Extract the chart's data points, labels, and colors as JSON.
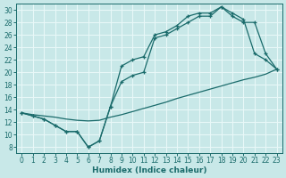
{
  "xlabel": "Humidex (Indice chaleur)",
  "bg_color": "#c8e8e8",
  "grid_color": "#e8f8f8",
  "line_color": "#1a6b6b",
  "xlim": [
    -0.5,
    23.5
  ],
  "ylim": [
    7,
    31
  ],
  "yticks": [
    8,
    10,
    12,
    14,
    16,
    18,
    20,
    22,
    24,
    26,
    28,
    30
  ],
  "xticks": [
    0,
    1,
    2,
    3,
    4,
    5,
    6,
    7,
    8,
    9,
    10,
    11,
    12,
    13,
    14,
    15,
    16,
    17,
    18,
    19,
    20,
    21,
    22,
    23
  ],
  "line_upper_x": [
    0,
    1,
    2,
    3,
    4,
    5,
    6,
    7,
    8,
    9,
    10,
    11,
    12,
    13,
    14,
    15,
    16,
    17,
    18,
    19,
    20,
    21,
    22,
    23
  ],
  "line_upper_y": [
    13.5,
    13.0,
    12.5,
    11.5,
    10.5,
    10.5,
    8.0,
    9.0,
    14.5,
    21.0,
    22.0,
    22.5,
    26.0,
    26.5,
    27.5,
    29.0,
    29.5,
    29.5,
    30.5,
    29.5,
    28.5,
    23.0,
    22.0,
    20.5
  ],
  "line_lower_x": [
    0,
    1,
    2,
    3,
    4,
    5,
    6,
    7,
    8,
    9,
    10,
    11,
    12,
    13,
    14,
    15,
    16,
    17,
    18,
    19,
    20,
    21,
    22,
    23
  ],
  "line_lower_y": [
    13.5,
    13.0,
    12.5,
    11.5,
    10.5,
    10.5,
    8.0,
    9.0,
    14.5,
    18.5,
    19.5,
    20.0,
    25.5,
    26.0,
    27.0,
    28.0,
    29.0,
    29.0,
    30.5,
    29.0,
    28.0,
    28.0,
    23.0,
    20.5
  ],
  "line_diag_x": [
    0,
    1,
    2,
    3,
    4,
    5,
    6,
    7,
    8,
    9,
    10,
    11,
    12,
    13,
    14,
    15,
    16,
    17,
    18,
    19,
    20,
    21,
    22,
    23
  ],
  "line_diag_y": [
    13.5,
    13.2,
    13.0,
    12.8,
    12.5,
    12.3,
    12.2,
    12.3,
    12.8,
    13.2,
    13.7,
    14.2,
    14.7,
    15.2,
    15.8,
    16.3,
    16.8,
    17.3,
    17.8,
    18.3,
    18.8,
    19.2,
    19.7,
    20.5
  ]
}
